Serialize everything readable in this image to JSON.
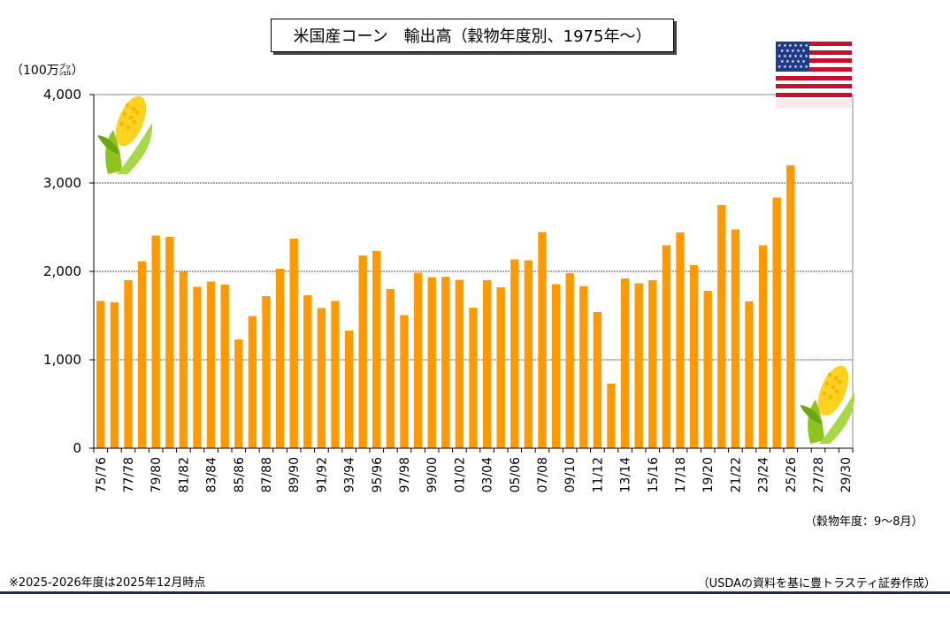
{
  "chart_data": {
    "type": "bar",
    "title": "米国産コーン　輸出高（穀物年度別、1975年～）",
    "ylabel": "（100万ブッシェル）",
    "ylabel_display": "（100万㌴）",
    "xlabel": "（穀物年度：9～8月）",
    "ylim": [
      0,
      4000
    ],
    "yticks": [
      "0",
      "1,000",
      "2,000",
      "3,000",
      "4,000"
    ],
    "ytick_values": [
      0,
      1000,
      2000,
      3000,
      4000
    ],
    "grid": true,
    "bar_color": "#FF9900",
    "categories": [
      "75/76",
      "76/77",
      "77/78",
      "78/79",
      "79/80",
      "80/81",
      "81/82",
      "82/83",
      "83/84",
      "84/85",
      "85/86",
      "86/87",
      "87/88",
      "88/89",
      "89/90",
      "90/91",
      "91/92",
      "92/93",
      "93/94",
      "94/95",
      "95/96",
      "96/97",
      "97/98",
      "98/99",
      "99/00",
      "00/01",
      "01/02",
      "02/03",
      "03/04",
      "04/05",
      "05/06",
      "06/07",
      "07/08",
      "08/09",
      "09/10",
      "10/11",
      "11/12",
      "12/13",
      "13/14",
      "14/15",
      "15/16",
      "16/17",
      "17/18",
      "18/19",
      "19/20",
      "20/21",
      "21/22",
      "22/23",
      "23/24",
      "24/25",
      "25/26",
      "26/27",
      "27/28",
      "28/29",
      "29/30"
    ],
    "tick_labels": [
      "75/76",
      "77/78",
      "79/80",
      "81/82",
      "83/84",
      "85/86",
      "87/88",
      "89/90",
      "91/92",
      "93/94",
      "95/96",
      "97/98",
      "99/00",
      "01/02",
      "03/04",
      "05/06",
      "07/08",
      "09/10",
      "11/12",
      "13/14",
      "15/16",
      "17/18",
      "19/20",
      "21/22",
      "23/24",
      "25/26",
      "27/28",
      "29/30"
    ],
    "values": [
      1665,
      1650,
      1900,
      2115,
      2405,
      2390,
      1995,
      1825,
      1885,
      1850,
      1230,
      1495,
      1720,
      2030,
      2370,
      1730,
      1585,
      1665,
      1330,
      2180,
      2230,
      1800,
      1505,
      1985,
      1935,
      1940,
      1905,
      1590,
      1900,
      1820,
      2135,
      2125,
      2445,
      1855,
      1980,
      1835,
      1540,
      730,
      1920,
      1865,
      1900,
      2295,
      2440,
      2070,
      1780,
      2750,
      2475,
      1660,
      2295,
      2835,
      3200,
      null,
      null,
      null,
      null
    ]
  },
  "notes": {
    "left": "※2025-2026年度は2025年12月時点",
    "right": "（USDAの資料を基に豊トラスティ証券作成）"
  },
  "decor": {
    "flag": "us-flag-icon",
    "corn": "corn-icon"
  }
}
